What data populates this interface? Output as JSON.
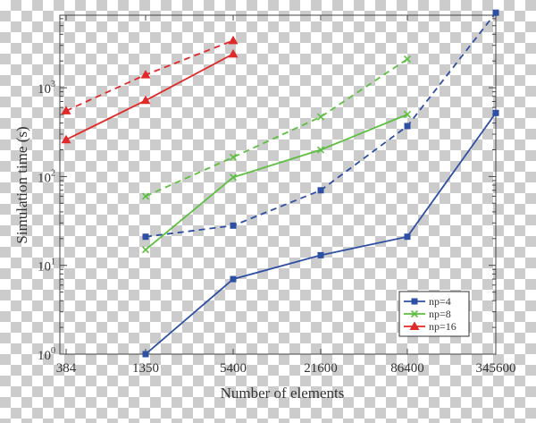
{
  "chart_data": {
    "type": "line",
    "title": "",
    "xlabel": "Number of elements",
    "ylabel": "Simulation time (s)",
    "x_scale": "log",
    "y_scale": "log",
    "xlim": [
      384,
      345600
    ],
    "ylim": [
      1,
      8000
    ],
    "x_ticks": [
      384,
      1350,
      5400,
      21600,
      86400,
      345600
    ],
    "x_tick_labels": [
      "384",
      "1350",
      "5400",
      "21600",
      "86400",
      "345600"
    ],
    "y_ticks": [
      1,
      10,
      100,
      1000
    ],
    "y_tick_labels": [
      {
        "base": "10",
        "exp": "0"
      },
      {
        "base": "10",
        "exp": "1"
      },
      {
        "base": "10",
        "exp": "2"
      },
      {
        "base": "10",
        "exp": "3"
      }
    ],
    "grid": false,
    "legend_position": "bottom-right",
    "legend": [
      "np=4",
      "np=8",
      "np=16"
    ],
    "series": [
      {
        "name": "np=4",
        "color": "#2e4fa3",
        "marker": "square",
        "line_style": "solid",
        "x": [
          1350,
          5400,
          21600,
          86400,
          345600
        ],
        "y": [
          1.0,
          7,
          13,
          21,
          520
        ]
      },
      {
        "name": "",
        "color": "#2e4fa3",
        "marker": "square",
        "line_style": "dashed",
        "x": [
          1350,
          5400,
          21600,
          86400,
          345600
        ],
        "y": [
          21,
          28,
          70,
          370,
          7000
        ]
      },
      {
        "name": "np=8",
        "color": "#5cbf40",
        "marker": "x",
        "line_style": "solid",
        "x": [
          1350,
          5400,
          21600,
          86400
        ],
        "y": [
          15,
          98,
          200,
          500
        ]
      },
      {
        "name": "",
        "color": "#5cbf40",
        "marker": "x",
        "line_style": "dashed",
        "x": [
          1350,
          5400,
          21600,
          86400
        ],
        "y": [
          60,
          165,
          470,
          2100
        ]
      },
      {
        "name": "np=16",
        "color": "#e02a2a",
        "marker": "triangle",
        "line_style": "solid",
        "x": [
          384,
          1350,
          5400
        ],
        "y": [
          260,
          720,
          2400
        ]
      },
      {
        "name": "",
        "color": "#e02a2a",
        "marker": "triangle",
        "line_style": "dashed",
        "x": [
          384,
          1350,
          5400
        ],
        "y": [
          550,
          1400,
          3400
        ]
      }
    ]
  }
}
